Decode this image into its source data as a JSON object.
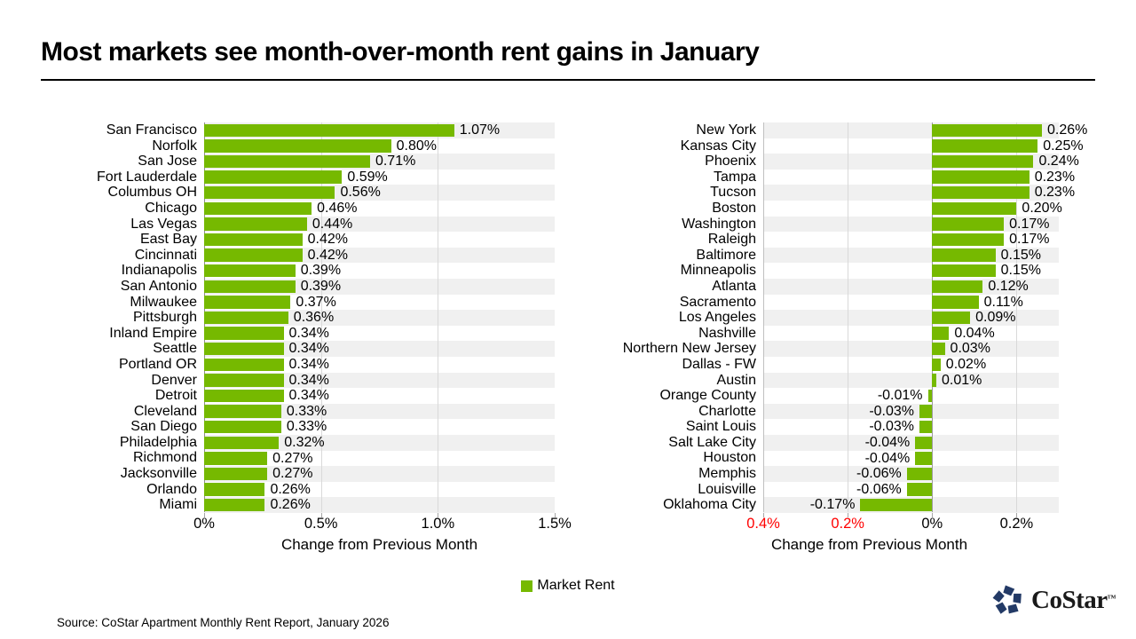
{
  "page": {
    "title": "Most markets see month-over-month rent gains in January",
    "source": "Source: CoStar Apartment Monthly Rent Report, January 2026"
  },
  "legend": {
    "label": "Market Rent",
    "swatch_color": "#76b900"
  },
  "logo": {
    "text": "CoStar",
    "tm": "™",
    "icon_color": "#233a66"
  },
  "colors": {
    "bar": "#76b900",
    "stripe": "#f0f0f0",
    "gridline": "#d9d9d9",
    "axis": "#a6a6a6",
    "negative_tick": "#ff0000"
  },
  "chart_data": [
    {
      "type": "bar",
      "orientation": "horizontal",
      "title": "",
      "xlabel": "Change from Previous Month",
      "ylabel": "",
      "series_name": "Market Rent",
      "xlim": [
        0,
        1.5
      ],
      "grid": true,
      "categories": [
        "San Francisco",
        "Norfolk",
        "San Jose",
        "Fort Lauderdale",
        "Columbus OH",
        "Chicago",
        "Las Vegas",
        "East Bay",
        "Cincinnati",
        "Indianapolis",
        "San Antonio",
        "Milwaukee",
        "Pittsburgh",
        "Inland Empire",
        "Seattle",
        "Portland OR",
        "Denver",
        "Detroit",
        "Cleveland",
        "San Diego",
        "Philadelphia",
        "Richmond",
        "Jacksonville",
        "Orlando",
        "Miami"
      ],
      "values": [
        1.07,
        0.8,
        0.71,
        0.59,
        0.56,
        0.46,
        0.44,
        0.42,
        0.42,
        0.39,
        0.39,
        0.37,
        0.36,
        0.34,
        0.34,
        0.34,
        0.34,
        0.34,
        0.33,
        0.33,
        0.32,
        0.27,
        0.27,
        0.26,
        0.26
      ],
      "value_labels": [
        "1.07%",
        "0.80%",
        "0.71%",
        "0.59%",
        "0.56%",
        "0.46%",
        "0.44%",
        "0.42%",
        "0.42%",
        "0.39%",
        "0.39%",
        "0.37%",
        "0.36%",
        "0.34%",
        "0.34%",
        "0.34%",
        "0.34%",
        "0.34%",
        "0.33%",
        "0.33%",
        "0.32%",
        "0.27%",
        "0.27%",
        "0.26%",
        "0.26%"
      ],
      "ticks": [
        {
          "label": "0%",
          "value": 0,
          "color": "#000000"
        },
        {
          "label": "0.5%",
          "value": 0.5,
          "color": "#000000"
        },
        {
          "label": "1.0%",
          "value": 1.0,
          "color": "#000000"
        },
        {
          "label": "1.5%",
          "value": 1.5,
          "color": "#000000"
        }
      ]
    },
    {
      "type": "bar",
      "orientation": "horizontal",
      "title": "",
      "xlabel": "Change from Previous Month",
      "ylabel": "",
      "series_name": "Market Rent",
      "xlim": [
        -0.4,
        0.3
      ],
      "grid": true,
      "categories": [
        "New York",
        "Kansas City",
        "Phoenix",
        "Tampa",
        "Tucson",
        "Boston",
        "Washington",
        "Raleigh",
        "Baltimore",
        "Minneapolis",
        "Atlanta",
        "Sacramento",
        "Los Angeles",
        "Nashville",
        "Northern New Jersey",
        "Dallas - FW",
        "Austin",
        "Orange County",
        "Charlotte",
        "Saint Louis",
        "Salt Lake City",
        "Houston",
        "Memphis",
        "Louisville",
        "Oklahoma City"
      ],
      "values": [
        0.26,
        0.25,
        0.24,
        0.23,
        0.23,
        0.2,
        0.17,
        0.17,
        0.15,
        0.15,
        0.12,
        0.11,
        0.09,
        0.04,
        0.03,
        0.02,
        0.01,
        -0.01,
        -0.03,
        -0.03,
        -0.04,
        -0.04,
        -0.06,
        -0.06,
        -0.17
      ],
      "value_labels": [
        "0.26%",
        "0.25%",
        "0.24%",
        "0.23%",
        "0.23%",
        "0.20%",
        "0.17%",
        "0.17%",
        "0.15%",
        "0.15%",
        "0.12%",
        "0.11%",
        "0.09%",
        "0.04%",
        "0.03%",
        "0.02%",
        "0.01%",
        "-0.01%",
        "-0.03%",
        "-0.03%",
        "-0.04%",
        "-0.04%",
        "-0.06%",
        "-0.06%",
        "-0.17%"
      ],
      "ticks": [
        {
          "label": "0.4%",
          "value": -0.4,
          "color": "#ff0000"
        },
        {
          "label": "0.2%",
          "value": -0.2,
          "color": "#ff0000"
        },
        {
          "label": "0%",
          "value": 0,
          "color": "#000000"
        },
        {
          "label": "0.2%",
          "value": 0.2,
          "color": "#000000"
        }
      ]
    }
  ]
}
